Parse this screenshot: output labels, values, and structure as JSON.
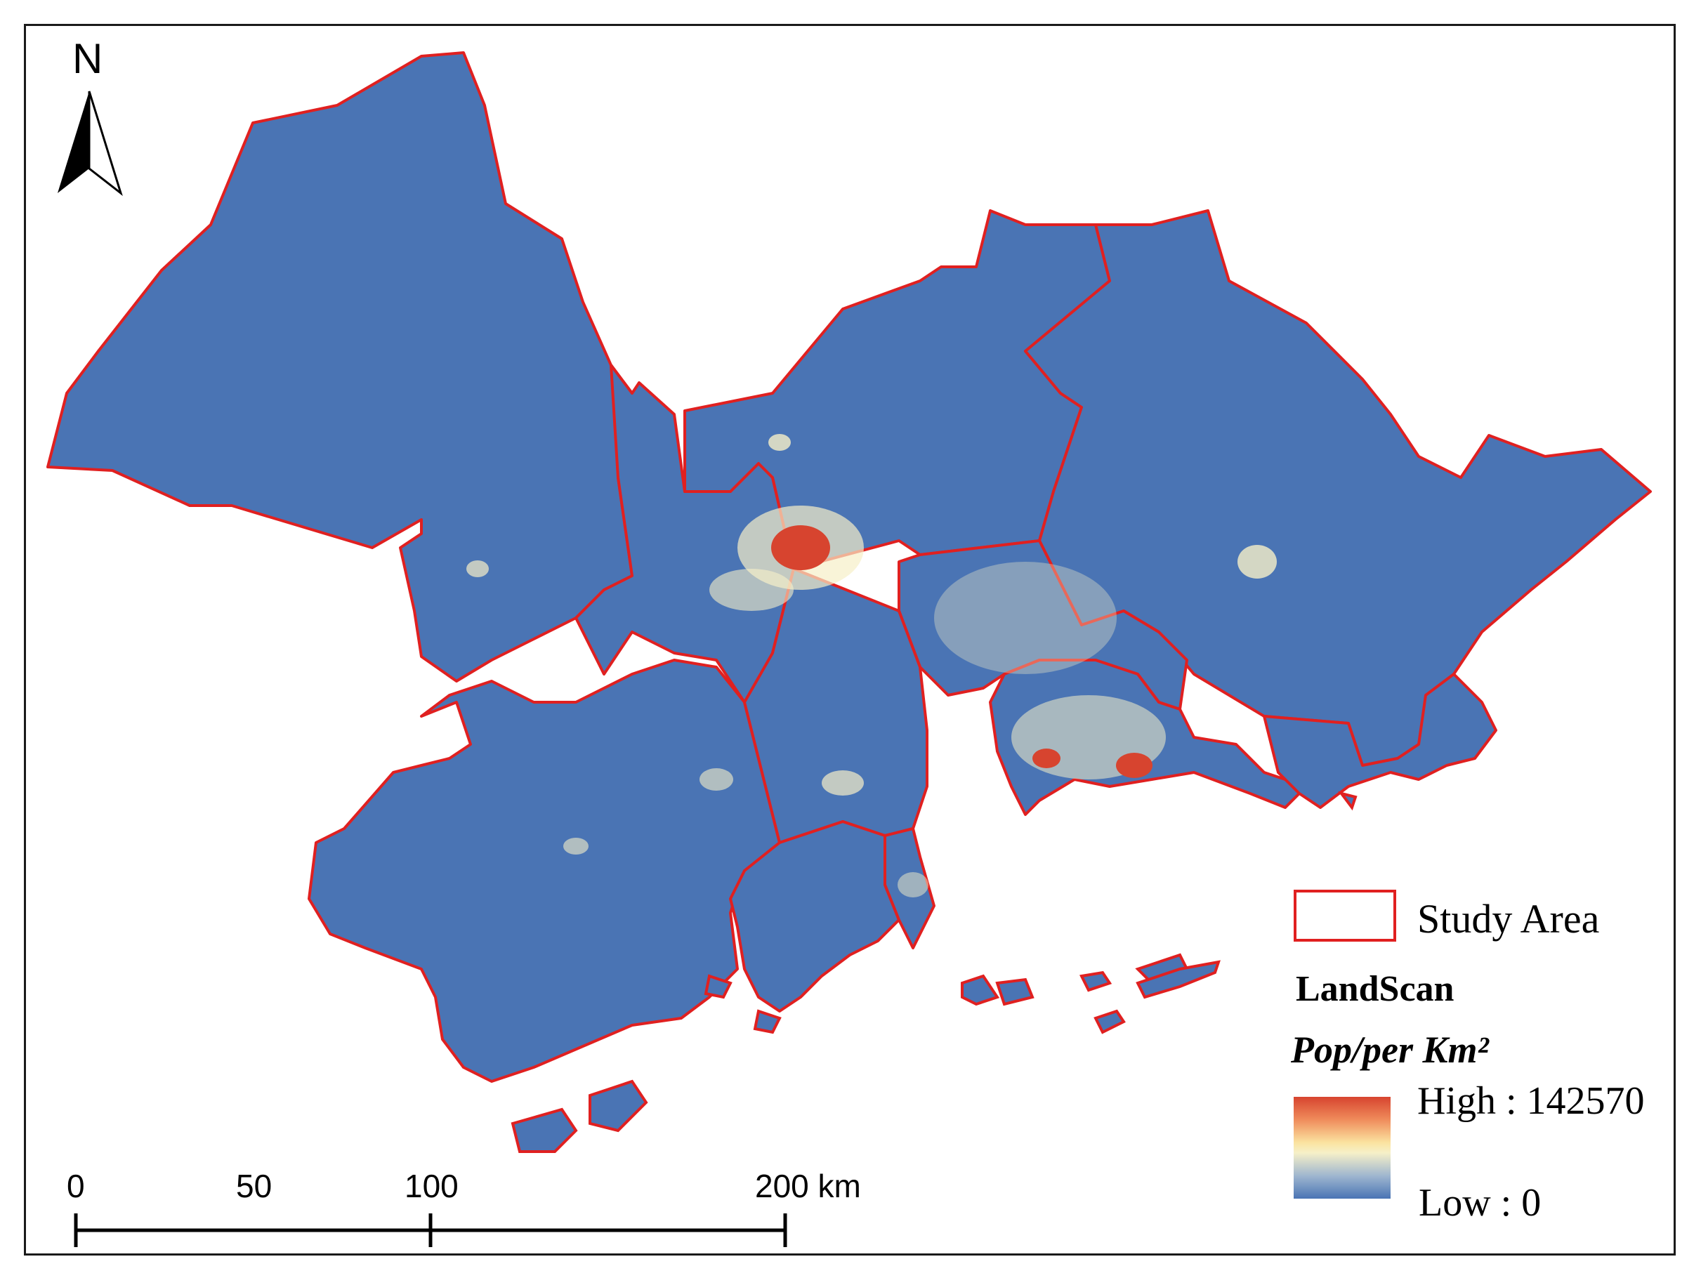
{
  "map": {
    "north_arrow_label": "N",
    "scale_bar": {
      "labels": [
        "0",
        "50",
        "100",
        "200 km"
      ]
    },
    "legend": {
      "study_area_label": "Study Area",
      "dataset_title": "LandScan",
      "unit_label": "Pop/per Km²",
      "high_label": "High : 142570",
      "low_label": "Low : 0"
    },
    "colors": {
      "boundary": "#e02020",
      "low": "#4a74b4",
      "mid": "#f6f0c8",
      "high": "#d7442f"
    }
  }
}
